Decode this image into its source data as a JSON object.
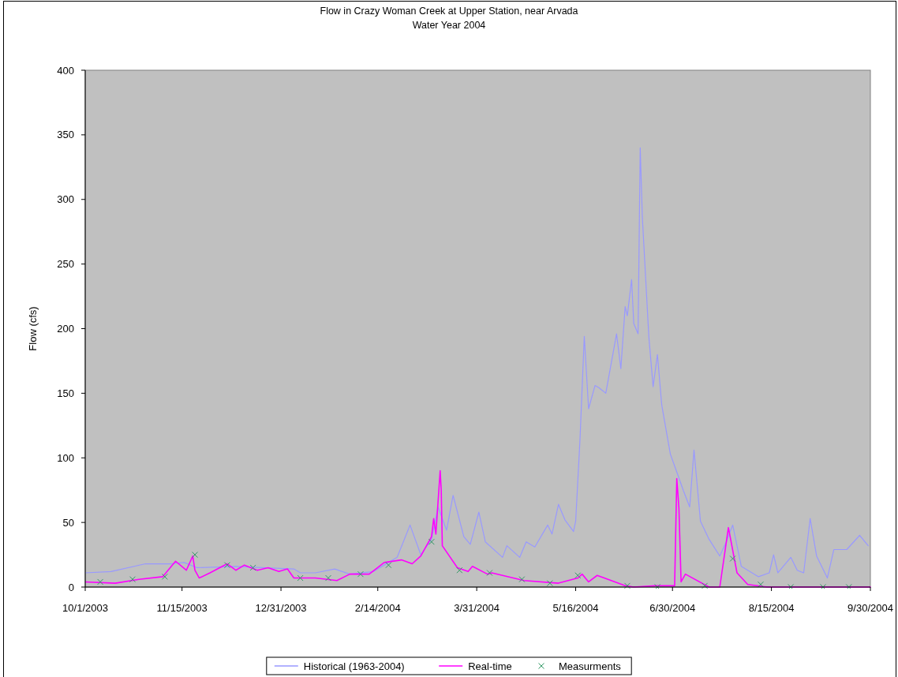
{
  "chart_data": {
    "type": "line",
    "title": "Flow in Crazy Woman Creek at Upper Station, near Arvada",
    "subtitle": "Water Year 2004",
    "ylabel": "Flow (cfs)",
    "xlim": [
      "2003-10-01",
      "2004-09-30"
    ],
    "xticks": [
      {
        "value": "2003-10-01",
        "label": "10/1/2003"
      },
      {
        "value": "2003-11-15",
        "label": "11/15/2003"
      },
      {
        "value": "2003-12-31",
        "label": "12/31/2003"
      },
      {
        "value": "2004-02-14",
        "label": "2/14/2004"
      },
      {
        "value": "2004-03-31",
        "label": "3/31/2004"
      },
      {
        "value": "2004-05-16",
        "label": "5/16/2004"
      },
      {
        "value": "2004-06-30",
        "label": "6/30/2004"
      },
      {
        "value": "2004-08-15",
        "label": "8/15/2004"
      },
      {
        "value": "2004-09-30",
        "label": "9/30/2004"
      }
    ],
    "ylim": [
      0,
      400
    ],
    "yticks": [
      0,
      50,
      100,
      150,
      200,
      250,
      300,
      350,
      400
    ],
    "grid": false,
    "legend": "bottom",
    "series": [
      {
        "name": "Historical (1963-2004)",
        "color": "#9999ff",
        "x": [
          "2003-10-01",
          "2003-10-13",
          "2003-10-29",
          "2003-11-10",
          "2003-11-16",
          "2003-11-22",
          "2003-12-10",
          "2004-01-06",
          "2004-01-09",
          "2004-01-16",
          "2004-01-25",
          "2004-02-01",
          "2004-02-12",
          "2004-02-19",
          "2004-02-23",
          "2004-02-29",
          "2004-03-05",
          "2004-03-10",
          "2004-03-13",
          "2004-03-17",
          "2004-03-20",
          "2004-03-25",
          "2004-03-28",
          "2004-04-01",
          "2004-04-04",
          "2004-04-12",
          "2004-04-14",
          "2004-04-20",
          "2004-04-23",
          "2004-04-27",
          "2004-05-03",
          "2004-05-05",
          "2004-05-08",
          "2004-05-11",
          "2004-05-15",
          "2004-05-16",
          "2004-05-18",
          "2004-05-20",
          "2004-05-22",
          "2004-05-25",
          "2004-05-27",
          "2004-05-30",
          "2004-06-04",
          "2004-06-06",
          "2004-06-08",
          "2004-06-09",
          "2004-06-11",
          "2004-06-12",
          "2004-06-14",
          "2004-06-15",
          "2004-06-16",
          "2004-06-19",
          "2004-06-21",
          "2004-06-23",
          "2004-06-25",
          "2004-06-29",
          "2004-07-02",
          "2004-07-05",
          "2004-07-08",
          "2004-07-10",
          "2004-07-13",
          "2004-07-17",
          "2004-07-22",
          "2004-07-25",
          "2004-07-28",
          "2004-08-01",
          "2004-08-09",
          "2004-08-14",
          "2004-08-16",
          "2004-08-18",
          "2004-08-24",
          "2004-08-27",
          "2004-08-30",
          "2004-09-02",
          "2004-09-05",
          "2004-09-10",
          "2004-09-13",
          "2004-09-19",
          "2004-09-25",
          "2004-09-29"
        ],
        "values": [
          11,
          12,
          18,
          18,
          19,
          15,
          16,
          14,
          11,
          11,
          14,
          10,
          12,
          19,
          23,
          48,
          25,
          37,
          62,
          44,
          71,
          39,
          33,
          58,
          35,
          23,
          32,
          23,
          35,
          31,
          48,
          41,
          64,
          52,
          43,
          51,
          114,
          194,
          138,
          156,
          154,
          150,
          196,
          169,
          217,
          210,
          238,
          204,
          196,
          340,
          286,
          194,
          155,
          180,
          141,
          103,
          89,
          75,
          62,
          106,
          51,
          37,
          24,
          35,
          48,
          16,
          8,
          11,
          25,
          11,
          23,
          13,
          11,
          53,
          24,
          7,
          29,
          29,
          40,
          32
        ]
      },
      {
        "name": "Real-time",
        "color": "#ff00ff",
        "x": [
          "2003-10-01",
          "2003-10-15",
          "2003-10-26",
          "2003-11-06",
          "2003-11-12",
          "2003-11-17",
          "2003-11-20",
          "2003-11-21",
          "2003-11-23",
          "2003-11-28",
          "2003-12-06",
          "2003-12-10",
          "2003-12-14",
          "2003-12-20",
          "2003-12-25",
          "2003-12-30",
          "2004-01-03",
          "2004-01-06",
          "2004-01-16",
          "2004-01-26",
          "2004-02-01",
          "2004-02-10",
          "2004-02-17",
          "2004-02-25",
          "2004-03-01",
          "2004-03-05",
          "2004-03-10",
          "2004-03-11",
          "2004-03-12",
          "2004-03-14",
          "2004-03-14T12:00",
          "2004-03-15",
          "2004-03-22",
          "2004-03-27",
          "2004-03-29",
          "2004-04-05",
          "2004-04-07",
          "2004-04-22",
          "2004-05-08",
          "2004-05-17",
          "2004-05-19",
          "2004-05-22",
          "2004-05-26",
          "2004-06-08",
          "2004-06-12",
          "2004-06-22",
          "2004-07-01",
          "2004-07-02",
          "2004-07-03",
          "2004-07-04",
          "2004-07-06",
          "2004-07-17",
          "2004-07-22",
          "2004-07-26",
          "2004-07-30",
          "2004-08-04",
          "2004-08-13",
          "2004-09-30"
        ],
        "values": [
          4,
          3,
          6,
          8,
          20,
          13,
          24,
          13,
          7,
          11,
          18,
          13,
          17,
          13,
          15,
          12,
          14,
          7,
          7,
          5,
          10,
          10,
          19,
          21,
          18,
          24,
          39,
          53,
          41,
          90,
          75,
          32,
          15,
          12,
          16,
          10,
          11,
          5,
          3,
          7,
          10,
          4,
          9,
          1,
          0,
          1,
          1,
          84,
          61,
          4,
          10,
          0,
          0,
          46,
          11,
          2,
          0,
          0
        ]
      },
      {
        "name": "Measurments",
        "type": "scatter",
        "color": "#339966",
        "marker": "cross",
        "x": [
          "2003-10-08",
          "2003-10-23",
          "2003-11-07",
          "2003-11-21",
          "2003-12-06",
          "2003-12-18",
          "2004-01-09",
          "2004-01-22",
          "2004-02-06",
          "2004-02-19",
          "2004-03-10",
          "2004-03-23",
          "2004-04-06",
          "2004-04-21",
          "2004-05-04",
          "2004-05-17",
          "2004-06-09",
          "2004-06-23",
          "2004-07-15",
          "2004-07-28",
          "2004-08-10",
          "2004-08-24",
          "2004-09-08",
          "2004-09-20"
        ],
        "values": [
          4,
          6,
          8,
          25,
          17,
          15,
          7,
          7,
          10,
          17,
          35,
          13,
          11,
          6,
          3,
          9,
          1,
          0,
          1,
          22,
          2,
          0,
          0,
          0
        ]
      }
    ]
  }
}
